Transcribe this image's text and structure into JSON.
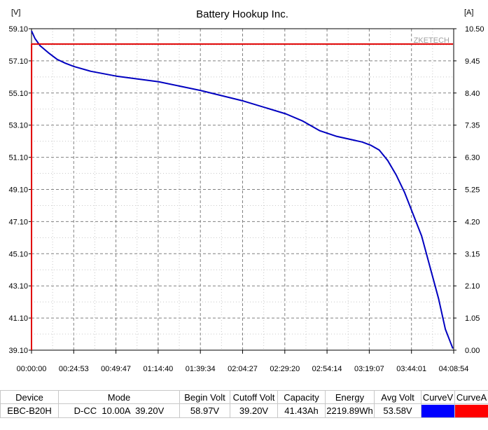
{
  "chart_data": {
    "type": "line",
    "title": "Battery Hookup Inc.",
    "watermark": "ZKETECH",
    "ylabel_left": "[V]",
    "ylabel_right": "[A]",
    "y_left_ticks": [
      "59.10",
      "57.10",
      "55.10",
      "53.10",
      "51.10",
      "49.10",
      "47.10",
      "45.10",
      "43.10",
      "41.10",
      "39.10"
    ],
    "y_right_ticks": [
      "10.50",
      "9.45",
      "8.40",
      "7.35",
      "6.30",
      "5.25",
      "4.20",
      "3.15",
      "2.10",
      "1.05",
      "0.00"
    ],
    "x_ticks": [
      "00:00:00",
      "00:24:53",
      "00:49:47",
      "01:14:40",
      "01:39:34",
      "02:04:27",
      "02:29:20",
      "02:54:14",
      "03:19:07",
      "03:44:01",
      "04:08:54"
    ],
    "ylim_left": [
      39.1,
      59.1
    ],
    "ylim_right": [
      0.0,
      10.5
    ],
    "xlim_minutes": [
      0,
      248.9
    ],
    "grid": true,
    "series": [
      {
        "name": "CurveV",
        "axis": "left",
        "color": "#0000c0",
        "x": [
          0,
          2,
          5,
          10,
          15,
          20,
          25,
          35,
          50,
          75,
          100,
          125,
          150,
          160,
          170,
          180,
          195,
          200,
          205,
          210,
          215,
          220,
          230,
          240,
          244,
          248.4
        ],
        "y": [
          58.97,
          58.5,
          58.05,
          57.6,
          57.2,
          56.95,
          56.75,
          56.45,
          56.15,
          55.8,
          55.25,
          54.6,
          53.8,
          53.35,
          52.75,
          52.4,
          52.05,
          51.85,
          51.55,
          50.9,
          50.0,
          48.9,
          46.2,
          42.3,
          40.4,
          39.2
        ]
      },
      {
        "name": "CurveA",
        "axis": "right",
        "color": "#e00000",
        "x": [
          0,
          0.05,
          248.5
        ],
        "y": [
          0.0,
          10.0,
          10.0
        ]
      }
    ]
  },
  "results_table": {
    "headers": [
      "Device",
      "Mode",
      "Begin Volt",
      "Cutoff Volt",
      "Capacity",
      "Energy",
      "Avg Volt",
      "CurveV",
      "CurveA"
    ],
    "row": [
      "EBC-B20H",
      "D-CC  10.00A  39.20V",
      "58.97V",
      "39.20V",
      "41.43Ah",
      "2219.89Wh",
      "53.58V"
    ],
    "curve_colors": [
      "#0000ff",
      "#ff0000"
    ]
  }
}
